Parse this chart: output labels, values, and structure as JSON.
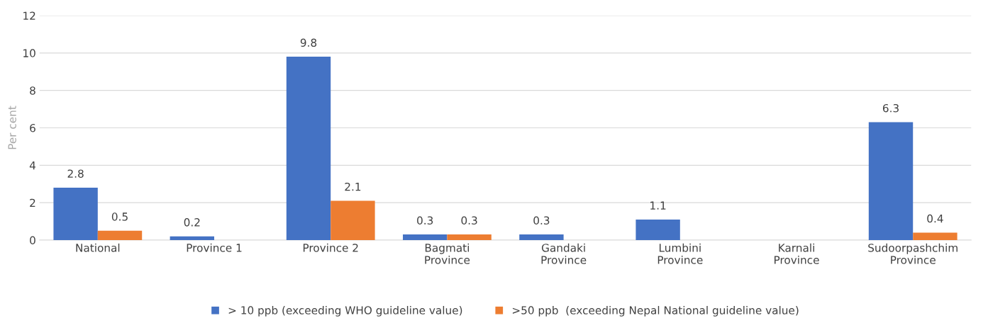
{
  "chart_data": {
    "type": "bar",
    "ylabel": "Per cent",
    "categories": [
      "National",
      "Province 1",
      "Province 2",
      "Bagmati\nProvince",
      "Gandaki\nProvince",
      "Lumbini\nProvince",
      "Karnali\nProvince",
      "Sudoorpashchim\nProvince"
    ],
    "series": [
      {
        "name": "> 10 ppb (exceeding WHO guideline value)",
        "color": "#4472c4",
        "values": [
          2.8,
          0.2,
          9.8,
          0.3,
          0.3,
          1.1,
          null,
          6.3
        ]
      },
      {
        "name": ">50 ppb  (exceeding Nepal National guideline value)",
        "color": "#ed7d31",
        "values": [
          0.5,
          null,
          2.1,
          0.3,
          null,
          null,
          null,
          0.4
        ]
      }
    ],
    "ylim": [
      0,
      12
    ],
    "yticks": [
      0,
      2,
      4,
      6,
      8,
      10,
      12
    ],
    "grid": "y",
    "legend": "bottom",
    "data_labels": true
  }
}
